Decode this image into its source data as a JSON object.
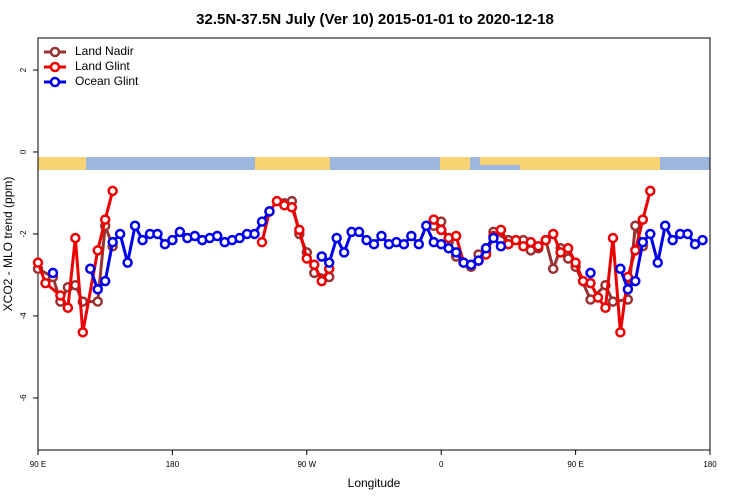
{
  "chart_data": {
    "type": "line",
    "title": "32.5N-37.5N July (Ver 10)   2015-01-01 to 2020-12-18",
    "xlabel": "Longitude",
    "ylabel": "XCO2 - MLO trend (ppm)",
    "xlim": [
      90,
      540
    ],
    "xticks": [
      {
        "value": 90,
        "label": "90 E"
      },
      180,
      {
        "value": 270,
        "label": "90 W"
      },
      {
        "value": 360,
        "label": "0"
      },
      {
        "value": 450,
        "label": "90 E"
      },
      {
        "value": 540,
        "label": "180"
      }
    ],
    "ylim": [
      -7.27,
      2.78
    ],
    "yticks": [
      2,
      0,
      -2,
      -4,
      -6
    ],
    "legend": "top-left",
    "series": [
      {
        "name": "Land Nadir",
        "color": "#993333",
        "x": [
          90,
          100,
          105,
          110,
          115,
          120,
          130,
          135,
          140,
          null,
          255,
          260,
          265,
          270,
          275,
          285,
          null,
          355,
          360,
          365,
          370,
          380,
          385,
          390,
          395,
          405,
          415,
          420,
          425,
          430,
          435,
          440,
          445,
          450,
          460,
          470,
          475,
          485,
          490,
          495
        ],
        "values": [
          -2.85,
          -3.05,
          -3.65,
          -3.3,
          -3.25,
          -3.65,
          -3.65,
          -1.8,
          -2.3,
          null,
          -1.25,
          -1.2,
          -2.0,
          -2.45,
          -2.95,
          -3.05,
          null,
          -1.8,
          -1.7,
          -2.2,
          -2.55,
          -2.8,
          -2.5,
          -2.45,
          -1.95,
          -2.15,
          -2.15,
          -2.4,
          -2.35,
          -2.15,
          -2.85,
          -2.35,
          -2.6,
          -2.8,
          -3.6,
          -3.25,
          -3.65,
          -3.6,
          -1.8,
          -2.3
        ]
      },
      {
        "name": "Land Glint",
        "color": "#ee0000",
        "x": [
          90,
          95,
          105,
          110,
          115,
          120,
          130,
          135,
          140,
          null,
          240,
          245,
          250,
          255,
          260,
          265,
          270,
          275,
          280,
          285,
          null,
          355,
          360,
          365,
          370,
          375,
          385,
          390,
          395,
          400,
          405,
          410,
          415,
          420,
          425,
          430,
          435,
          440,
          445,
          450,
          455,
          460,
          465,
          470,
          475,
          480,
          485,
          490,
          495,
          500
        ],
        "values": [
          -2.7,
          -3.2,
          -3.5,
          -3.8,
          -2.1,
          -4.4,
          -2.4,
          -1.65,
          -0.95,
          null,
          -2.2,
          -1.45,
          -1.2,
          -1.3,
          -1.35,
          -1.9,
          -2.6,
          -2.75,
          -3.15,
          -2.85,
          null,
          -1.65,
          -1.9,
          -2.1,
          -2.05,
          -2.7,
          -2.65,
          -2.5,
          -2.05,
          -1.9,
          -2.25,
          -2.15,
          -2.3,
          -2.2,
          -2.3,
          -2.15,
          -2.0,
          -2.45,
          -2.35,
          -2.7,
          -3.15,
          -3.2,
          -3.55,
          -3.8,
          -2.1,
          -4.4,
          -3.05,
          -2.4,
          -1.65,
          -0.95
        ]
      },
      {
        "name": "Ocean Glint",
        "color": "#0000ee",
        "x": [
          100,
          null,
          125,
          130,
          135,
          140,
          145,
          150,
          155,
          160,
          165,
          170,
          175,
          180,
          185,
          190,
          195,
          200,
          205,
          210,
          215,
          220,
          225,
          230,
          235,
          240,
          245,
          null,
          280,
          285,
          290,
          295,
          300,
          305,
          310,
          315,
          320,
          325,
          330,
          335,
          340,
          345,
          350,
          355,
          360,
          365,
          370,
          375,
          380,
          385,
          390,
          395,
          400,
          null,
          460,
          null,
          480,
          485,
          490,
          495,
          500,
          505,
          510,
          515,
          520,
          525,
          530,
          535
        ],
        "values": [
          -2.95,
          null,
          -2.85,
          -3.35,
          -3.15,
          -2.2,
          -2.0,
          -2.7,
          -1.8,
          -2.15,
          -2.0,
          -2.0,
          -2.25,
          -2.15,
          -1.95,
          -2.1,
          -2.05,
          -2.15,
          -2.1,
          -2.05,
          -2.2,
          -2.15,
          -2.1,
          -2.0,
          -2.0,
          -1.7,
          -1.45,
          null,
          -2.55,
          -2.7,
          -2.1,
          -2.45,
          -1.95,
          -1.95,
          -2.15,
          -2.25,
          -2.05,
          -2.25,
          -2.2,
          -2.25,
          -2.05,
          -2.25,
          -1.8,
          -2.2,
          -2.25,
          -2.35,
          -2.45,
          -2.7,
          -2.75,
          -2.65,
          -2.35,
          -2.1,
          -2.3,
          null,
          -2.95,
          null,
          -2.85,
          -3.35,
          -3.15,
          -2.2,
          -2.0,
          -2.7,
          -1.8,
          -2.15,
          -2.0,
          -2.0,
          -2.25,
          -2.15
        ]
      }
    ]
  }
}
